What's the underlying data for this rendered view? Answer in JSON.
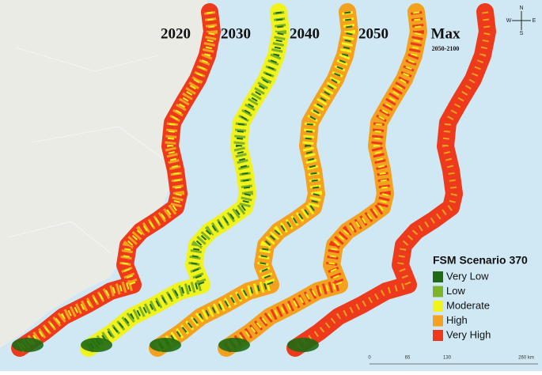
{
  "panels": [
    {
      "title": "2020"
    },
    {
      "title": "2030"
    },
    {
      "title": "2040"
    },
    {
      "title": "2050"
    },
    {
      "title": "Max",
      "subtitle": "2050-2100"
    }
  ],
  "legend": {
    "title": "FSM Scenario 370",
    "items": [
      {
        "label": "Very Low",
        "color": "#1e6b14"
      },
      {
        "label": "Low",
        "color": "#7db42a"
      },
      {
        "label": "Moderate",
        "color": "#f2f21c"
      },
      {
        "label": "High",
        "color": "#f3a11f"
      },
      {
        "label": "Very High",
        "color": "#ee3a1c"
      }
    ]
  },
  "scale_bar": {
    "labels": [
      "0",
      "65",
      "130",
      "260 km"
    ]
  },
  "compass": {
    "n": "N",
    "s": "S",
    "e": "E",
    "w": "W"
  }
}
